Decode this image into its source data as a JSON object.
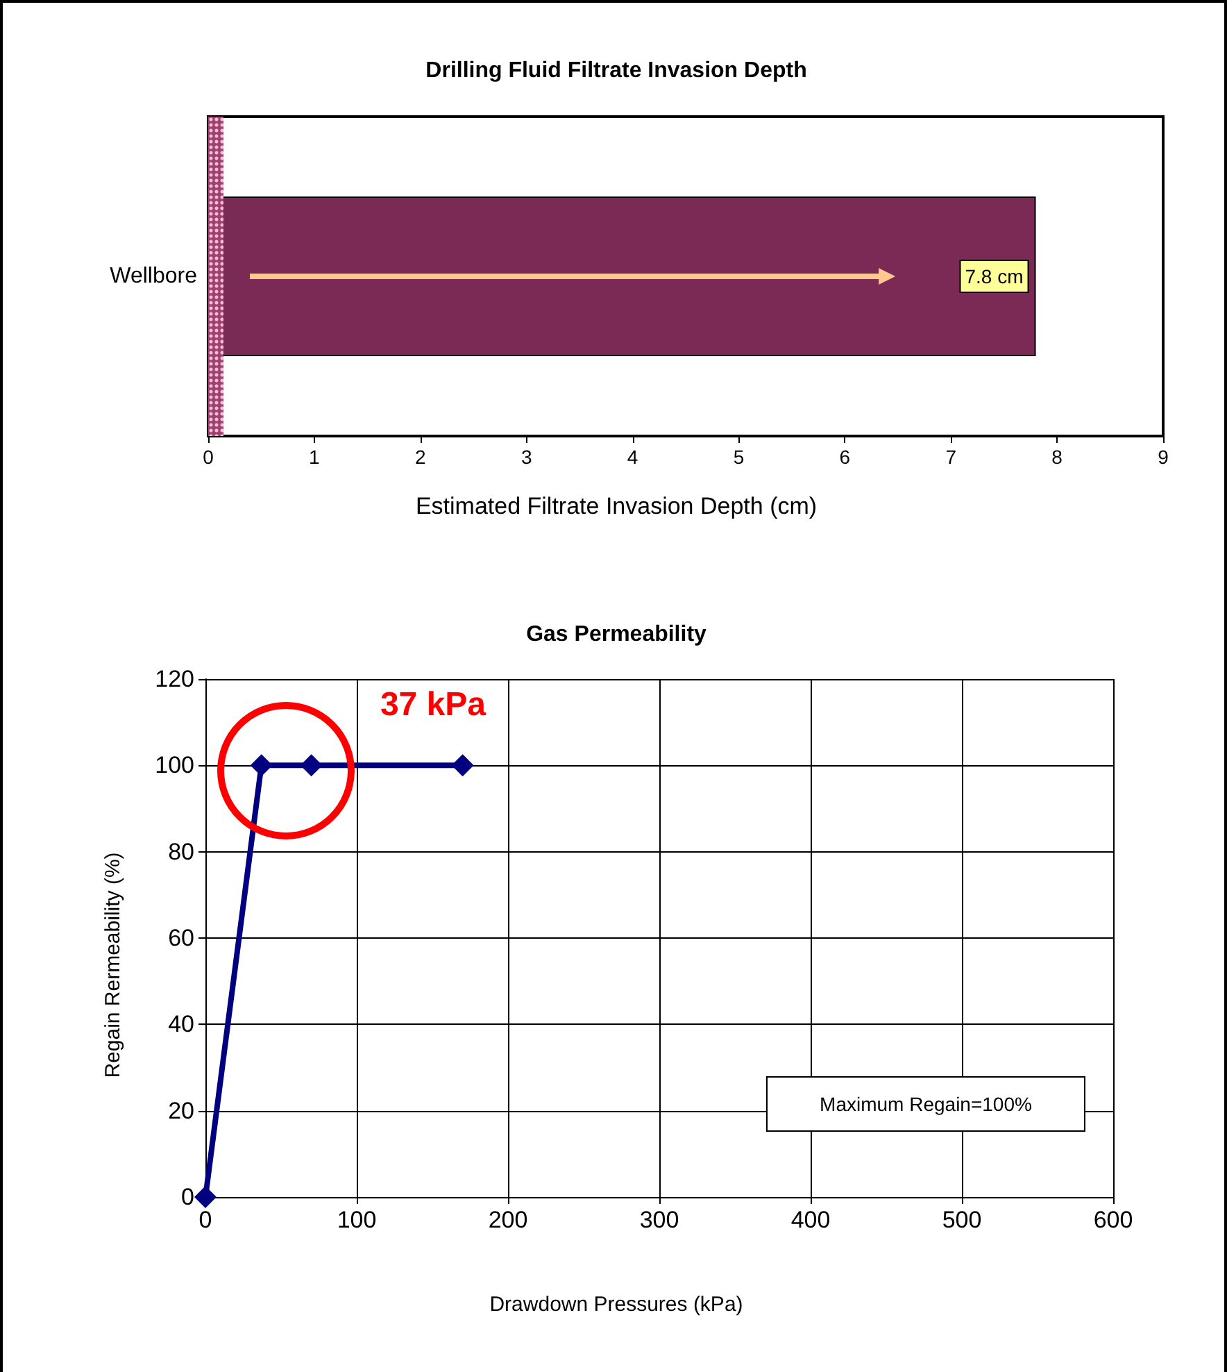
{
  "chart_data": [
    {
      "type": "bar",
      "title": "Drilling Fluid Filtrate Invasion Depth",
      "xlabel": "Estimated Filtrate Invasion Depth (cm)",
      "orientation": "horizontal",
      "categories": [
        "Wellbore"
      ],
      "values": [
        7.8
      ],
      "value_labels": [
        "7.8 cm"
      ],
      "color": "#7a2a55",
      "xlim": [
        0,
        9
      ],
      "xticks": [
        0,
        1,
        2,
        3,
        4,
        5,
        6,
        7,
        8,
        9
      ]
    },
    {
      "type": "line",
      "title": "Gas Permeability",
      "xlabel": "Drawdown Pressures (kPa)",
      "ylabel": "Regain Rermeability (%)",
      "x": [
        0,
        37,
        70,
        170
      ],
      "values": [
        0,
        100,
        100,
        100
      ],
      "color": "#000080",
      "xlim": [
        0,
        600
      ],
      "xticks": [
        0,
        100,
        200,
        300,
        400,
        500,
        600
      ],
      "ylim": [
        0,
        120
      ],
      "yticks": [
        0,
        20,
        40,
        60,
        80,
        100,
        120
      ],
      "grid": true,
      "marker": "diamond",
      "line_style": "solid",
      "annotations": [
        "37 kPa",
        "Maximum Regain=100%"
      ]
    }
  ]
}
